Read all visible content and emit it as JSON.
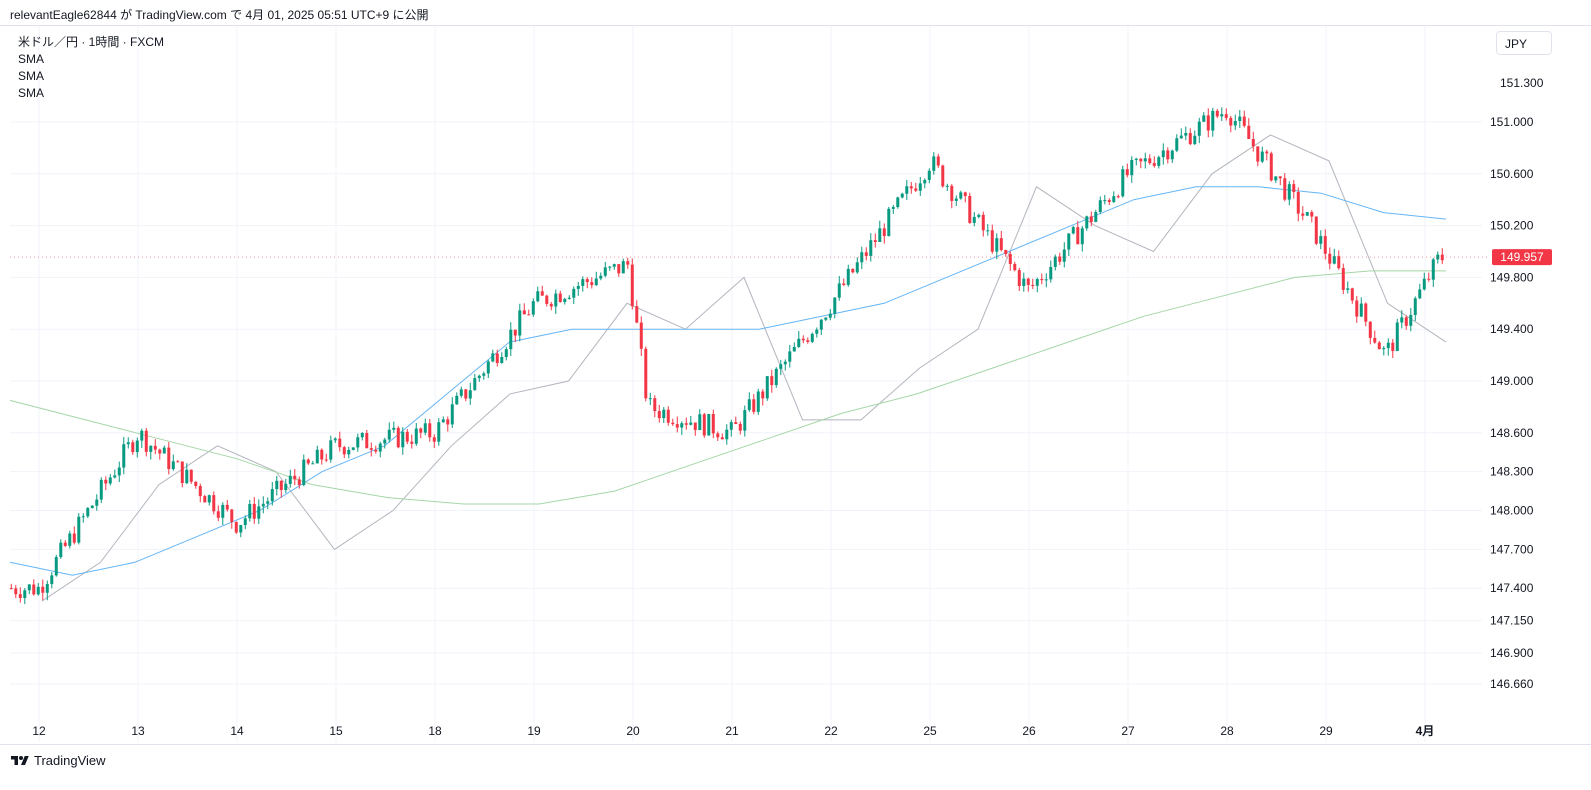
{
  "header": {
    "text": "relevantEagle62844 が TradingView.com で 4月 01, 2025 05:51 UTC+9 に公開"
  },
  "legend": {
    "symbol": "米ドル／円 · 1時間 · FXCM",
    "indicators": [
      "SMA",
      "SMA",
      "SMA"
    ]
  },
  "currency": "JPY",
  "footer": {
    "brand": "TradingView"
  },
  "colors": {
    "up": "#089981",
    "down": "#f23645",
    "sma_short": "#b2b5be",
    "sma_mid": "#64b5f6",
    "sma_long": "#a5d6a7",
    "grid": "#f0f3fa"
  },
  "chart_data": {
    "type": "candlestick",
    "yaxis": {
      "ticks": [
        "151.000",
        "150.600",
        "150.200",
        "149.800",
        "149.400",
        "149.000",
        "148.600",
        "148.300",
        "148.000",
        "147.700",
        "147.400",
        "147.150",
        "146.900",
        "146.660"
      ],
      "tick_values": [
        151.0,
        150.6,
        150.2,
        149.8,
        149.4,
        149.0,
        148.6,
        148.3,
        148.0,
        147.7,
        147.4,
        147.15,
        146.9,
        146.66
      ],
      "range": [
        146.66,
        151.5
      ],
      "partial_top_label": "151.300"
    },
    "xaxis": {
      "labels": [
        "12",
        "13",
        "14",
        "15",
        "18",
        "19",
        "20",
        "21",
        "22",
        "25",
        "26",
        "27",
        "28",
        "29",
        "4月"
      ],
      "bold_label": "4月"
    },
    "last_price": {
      "value": 149.957,
      "label": "149.957"
    },
    "key_points": [
      {
        "x": "12",
        "price": 147.4
      },
      {
        "x": "13",
        "price": 148.6
      },
      {
        "x": "14",
        "price": 147.9
      },
      {
        "x": "15",
        "price": 148.5
      },
      {
        "x": "18",
        "price": 148.6
      },
      {
        "x": "19",
        "price": 149.6
      },
      {
        "x": "20",
        "price": 149.9
      },
      {
        "x": "20",
        "price": 148.8
      },
      {
        "x": "21",
        "price": 148.6
      },
      {
        "x": "22",
        "price": 149.6
      },
      {
        "x": "25",
        "price": 150.7
      },
      {
        "x": "26",
        "price": 149.7
      },
      {
        "x": "27",
        "price": 150.6
      },
      {
        "x": "28",
        "price": 151.1
      },
      {
        "x": "29",
        "price": 150.2
      },
      {
        "x": "29",
        "price": 149.2
      },
      {
        "x": "4月",
        "price": 149.957
      }
    ],
    "series": [
      {
        "kind": "sma",
        "color": "#b2b5be",
        "points": [
          147.3,
          147.6,
          148.2,
          148.5,
          148.3,
          147.7,
          148.0,
          148.5,
          148.9,
          149.0,
          149.6,
          149.4,
          149.8,
          148.7,
          148.7,
          149.1,
          149.4,
          150.5,
          150.2,
          150.0,
          150.6,
          150.9,
          150.7,
          149.6,
          149.3
        ]
      },
      {
        "kind": "sma",
        "color": "#64b5f6",
        "points": [
          147.6,
          147.5,
          147.6,
          147.8,
          148.0,
          148.3,
          148.5,
          148.9,
          149.3,
          149.4,
          149.4,
          149.4,
          149.4,
          149.5,
          149.6,
          149.8,
          150.0,
          150.2,
          150.4,
          150.5,
          150.5,
          150.45,
          150.3,
          150.25
        ]
      },
      {
        "kind": "sma",
        "color": "#a5d6a7",
        "points": [
          148.85,
          148.7,
          148.55,
          148.4,
          148.2,
          148.1,
          148.05,
          148.05,
          148.15,
          148.35,
          148.55,
          148.75,
          148.9,
          149.1,
          149.3,
          149.5,
          149.65,
          149.8,
          149.85,
          149.85
        ]
      }
    ]
  }
}
